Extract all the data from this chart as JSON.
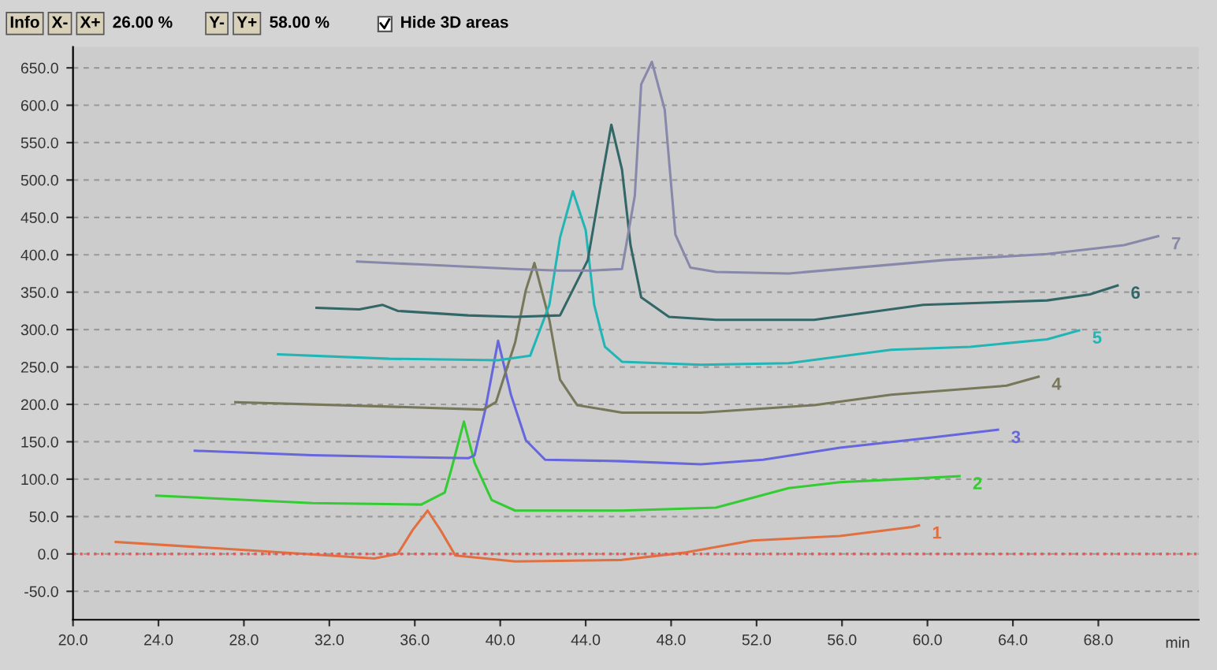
{
  "chart_data": {
    "type": "line",
    "xlabel": "min",
    "annotations": [
      "Info",
      "X-",
      "X+",
      "26.00 %",
      "Y-",
      "Y+",
      "58.00 %",
      "Hide 3D areas"
    ],
    "xlim": [
      20,
      72.7
    ],
    "ylim": [
      -88,
      678
    ],
    "xticks": [
      {
        "value": 20,
        "label": "20.0"
      },
      {
        "value": 24,
        "label": "24.0"
      },
      {
        "value": 28,
        "label": "28.0"
      },
      {
        "value": 32,
        "label": "32.0"
      },
      {
        "value": 36,
        "label": "36.0"
      },
      {
        "value": 40,
        "label": "40.0"
      },
      {
        "value": 44,
        "label": "44.0"
      },
      {
        "value": 48,
        "label": "48.0"
      },
      {
        "value": 52,
        "label": "52.0"
      },
      {
        "value": 56,
        "label": "56.0"
      },
      {
        "value": 60,
        "label": "60.0"
      },
      {
        "value": 64,
        "label": "64.0"
      },
      {
        "value": 68,
        "label": "68.0"
      }
    ],
    "yticks": [
      {
        "value": -50,
        "label": "-50.0"
      },
      {
        "value": 0,
        "label": "0.0"
      },
      {
        "value": 50,
        "label": "50.0"
      },
      {
        "value": 100,
        "label": "100.0"
      },
      {
        "value": 150,
        "label": "150.0"
      },
      {
        "value": 200,
        "label": "200.0"
      },
      {
        "value": 250,
        "label": "250.0"
      },
      {
        "value": 300,
        "label": "300.0"
      },
      {
        "value": 350,
        "label": "350.0"
      },
      {
        "value": 400,
        "label": "400.0"
      },
      {
        "value": 450,
        "label": "450.0"
      },
      {
        "value": 500,
        "label": "500.0"
      },
      {
        "value": 550,
        "label": "550.0"
      },
      {
        "value": 600,
        "label": "600.0"
      },
      {
        "value": 650,
        "label": "650.0"
      }
    ],
    "grid": "y",
    "legend": false,
    "marker": "none",
    "line_style": "solid",
    "ref_lines": [
      {
        "axis": "y",
        "value": 0,
        "color": "#ee5555",
        "line_style": "dotted"
      }
    ],
    "series": [
      {
        "name": "1",
        "color": "#e07040",
        "x": [
          22.0,
          27.6,
          34.1,
          35.2,
          35.9,
          36.6,
          37.2,
          37.9,
          40.7,
          45.7,
          48.7,
          51.8,
          55.9,
          59.3,
          59.6
        ],
        "values": [
          16,
          6,
          -6,
          0,
          32,
          58,
          32,
          -2,
          -10,
          -8,
          2,
          18,
          24,
          36,
          38
        ]
      },
      {
        "name": "2",
        "color": "#33cc33",
        "x": [
          23.9,
          31.2,
          36.3,
          37.4,
          37.7,
          38.3,
          38.8,
          39.6,
          40.7,
          45.7,
          50.1,
          53.5,
          55.9,
          58.8,
          61.5
        ],
        "values": [
          78,
          68,
          66,
          82,
          112,
          177,
          122,
          72,
          58,
          58,
          62,
          88,
          96,
          100,
          104
        ]
      },
      {
        "name": "3",
        "color": "#6666dd",
        "x": [
          25.7,
          31.2,
          38.5,
          38.8,
          39.3,
          39.9,
          40.5,
          41.2,
          42.1,
          45.7,
          49.4,
          52.3,
          55.9,
          60.3,
          63.3
        ],
        "values": [
          138,
          132,
          128,
          132,
          193,
          285,
          213,
          152,
          126,
          124,
          120,
          126,
          142,
          156,
          166
        ]
      },
      {
        "name": "4",
        "color": "#77775a",
        "x": [
          27.6,
          34.8,
          39.2,
          39.8,
          40.7,
          41.2,
          41.6,
          42.3,
          42.8,
          43.6,
          45.7,
          49.4,
          54.7,
          58.3,
          63.7,
          65.2
        ],
        "values": [
          203,
          197,
          193,
          203,
          283,
          353,
          389,
          313,
          233,
          199,
          189,
          189,
          199,
          213,
          225,
          237
        ]
      },
      {
        "name": "5",
        "color": "#22b5b5",
        "x": [
          29.6,
          34.8,
          39.9,
          41.4,
          42.3,
          42.8,
          43.4,
          44.0,
          44.4,
          44.9,
          45.7,
          49.4,
          53.5,
          58.3,
          62.0,
          65.6,
          67.1
        ],
        "values": [
          267,
          261,
          259,
          265,
          333,
          423,
          485,
          433,
          333,
          277,
          257,
          253,
          255,
          273,
          277,
          287,
          299
        ]
      },
      {
        "name": "6",
        "color": "#336666",
        "x": [
          31.4,
          33.4,
          34.5,
          35.2,
          38.5,
          40.7,
          42.8,
          44.1,
          44.7,
          45.2,
          45.7,
          46.1,
          46.6,
          47.9,
          50.1,
          54.7,
          59.8,
          65.6,
          67.6,
          68.9
        ],
        "values": [
          329,
          327,
          333,
          325,
          319,
          317,
          319,
          393,
          493,
          574,
          514,
          413,
          343,
          317,
          313,
          313,
          333,
          339,
          347,
          359
        ]
      },
      {
        "name": "7",
        "color": "#8888aa",
        "x": [
          33.3,
          36.3,
          40.7,
          42.7,
          44.3,
          45.7,
          46.3,
          46.6,
          47.1,
          47.7,
          48.2,
          48.9,
          50.1,
          53.5,
          60.8,
          65.6,
          69.2,
          70.8
        ],
        "values": [
          391,
          387,
          381,
          379,
          379,
          381,
          479,
          628,
          658,
          594,
          427,
          383,
          377,
          375,
          393,
          401,
          413,
          425
        ]
      }
    ]
  }
}
